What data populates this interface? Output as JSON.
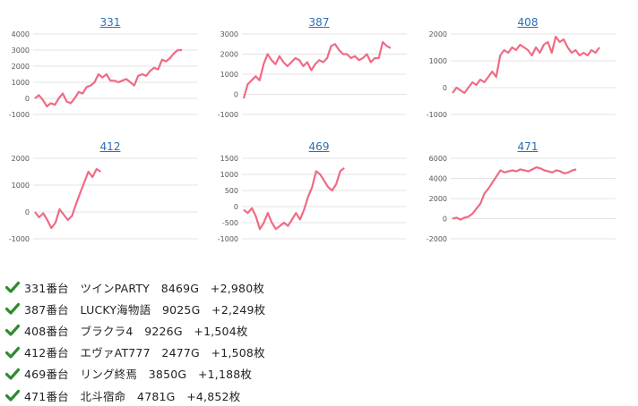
{
  "accent_line": "#ef6b84",
  "title_color": "#2f6db5",
  "check_color": "#2e8b2e",
  "chart_data": [
    {
      "type": "line",
      "title": "331",
      "ylim": [
        -1000,
        4000
      ],
      "yticks": [
        -1000,
        0,
        1000,
        2000,
        3000,
        4000
      ],
      "series": [
        {
          "values": [
            0,
            200,
            -100,
            -500,
            -300,
            -400,
            0,
            300,
            -200,
            -300,
            0,
            400,
            300,
            700,
            800,
            1000,
            1500,
            1300,
            1500,
            1100,
            1100,
            1000,
            1100,
            1200,
            1000,
            800,
            1400,
            1500,
            1400,
            1700,
            1900,
            1800,
            2400,
            2300,
            2500,
            2800,
            3000,
            3000
          ]
        }
      ]
    },
    {
      "type": "line",
      "title": "387",
      "ylim": [
        -1000,
        3000
      ],
      "yticks": [
        -1000,
        0,
        1000,
        2000,
        3000
      ],
      "series": [
        {
          "values": [
            -200,
            500,
            700,
            900,
            700,
            1500,
            2000,
            1700,
            1500,
            1900,
            1600,
            1400,
            1600,
            1800,
            1700,
            1400,
            1600,
            1200,
            1500,
            1700,
            1600,
            1800,
            2400,
            2500,
            2200,
            2000,
            2000,
            1800,
            1900,
            1700,
            1800,
            2000,
            1600,
            1800,
            1800,
            2600,
            2400,
            2300
          ]
        }
      ]
    },
    {
      "type": "line",
      "title": "408",
      "ylim": [
        -1000,
        2000
      ],
      "yticks": [
        -1000,
        0,
        1000,
        2000
      ],
      "series": [
        {
          "values": [
            -200,
            0,
            -100,
            -200,
            0,
            200,
            100,
            300,
            200,
            400,
            600,
            400,
            1200,
            1400,
            1300,
            1500,
            1400,
            1600,
            1500,
            1400,
            1200,
            1500,
            1300,
            1600,
            1700,
            1300,
            1900,
            1700,
            1800,
            1500,
            1300,
            1400,
            1200,
            1300,
            1200,
            1400,
            1300,
            1500
          ]
        }
      ]
    },
    {
      "type": "line",
      "title": "412",
      "ylim": [
        -1000,
        2000
      ],
      "yticks": [
        -1000,
        0,
        1000,
        2000
      ],
      "series": [
        {
          "values": [
            0,
            -200,
            -50,
            -300,
            -600,
            -400,
            100,
            -100,
            -300,
            -150,
            300,
            700,
            1100,
            1500,
            1300,
            1600,
            1500
          ]
        }
      ]
    },
    {
      "type": "line",
      "title": "469",
      "ylim": [
        -1000,
        1500
      ],
      "yticks": [
        -1000,
        -500,
        0,
        500,
        1000,
        1500
      ],
      "series": [
        {
          "values": [
            -100,
            -200,
            -50,
            -300,
            -700,
            -500,
            -200,
            -500,
            -700,
            -600,
            -500,
            -600,
            -400,
            -200,
            -400,
            -100,
            300,
            600,
            1100,
            1000,
            800,
            600,
            500,
            700,
            1100,
            1200
          ]
        }
      ]
    },
    {
      "type": "line",
      "title": "471",
      "ylim": [
        -2000,
        6000
      ],
      "yticks": [
        -2000,
        0,
        2000,
        4000,
        6000
      ],
      "series": [
        {
          "values": [
            0,
            100,
            -100,
            100,
            200,
            500,
            1000,
            1500,
            2500,
            3000,
            3600,
            4200,
            4800,
            4600,
            4700,
            4800,
            4700,
            4900,
            4800,
            4700,
            4900,
            5100,
            5000,
            4800,
            4700,
            4600,
            4800,
            4700,
            4500,
            4600,
            4800,
            4900
          ]
        }
      ]
    }
  ],
  "list": [
    {
      "text": "331番台　ツインPARTY　8469G　+2,980枚"
    },
    {
      "text": "387番台　LUCKY海物語　9025G　+2,249枚"
    },
    {
      "text": "408番台　ブラクラ4　9226G　+1,504枚"
    },
    {
      "text": "412番台　エヴァAT777　2477G　+1,508枚"
    },
    {
      "text": "469番台　リング終焉　3850G　+1,188枚"
    },
    {
      "text": "471番台　北斗宿命　4781G　+4,852枚"
    }
  ]
}
